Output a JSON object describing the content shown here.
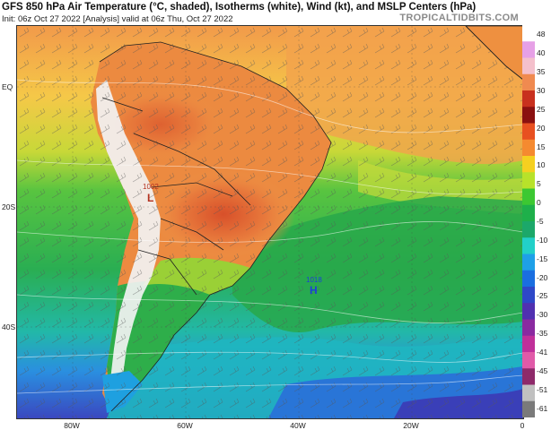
{
  "header": {
    "title": "GFS 850 hPa Air Temperature (°C, shaded), Isotherms (white), Wind (kt), and MSLP Centers (hPa)",
    "subtitle": "Init: 06z Oct 27 2022   [Analysis]   valid at 06z Thu, Oct 27 2022",
    "brand": "TROPICALTIDBITS.COM"
  },
  "map": {
    "lat_labels": [
      "EQ",
      "20S",
      "40S"
    ],
    "lon_labels": [
      "80W",
      "60W",
      "40W",
      "20W",
      "0"
    ],
    "pressure_centers": [
      {
        "kind": "low",
        "symbol": "L",
        "value": "1002",
        "color": "#b3301e"
      },
      {
        "kind": "high",
        "symbol": "H",
        "value": "1018",
        "color": "#1c3fd8"
      }
    ]
  },
  "colorbar": {
    "labels": [
      "48",
      "40",
      "35",
      "30",
      "25",
      "20",
      "15",
      "10",
      "5",
      "0",
      "-5",
      "-10",
      "-15",
      "-20",
      "-25",
      "-30",
      "-35",
      "-41",
      "-45",
      "-51",
      "-61"
    ],
    "colors": [
      "#ffffff",
      "#e6a0e6",
      "#f4c0cc",
      "#f08a50",
      "#c8301e",
      "#8a1010",
      "#e85020",
      "#f58a30",
      "#f5d020",
      "#b8e22a",
      "#3cc832",
      "#1eb04a",
      "#1ca86a",
      "#22d0c8",
      "#1ea0e8",
      "#1a6ee0",
      "#2e48c8",
      "#5030b0",
      "#8a2aa0",
      "#c0309a",
      "#e05aa8",
      "#8e2a6a",
      "#c0c0c0",
      "#7a7a7a"
    ]
  }
}
